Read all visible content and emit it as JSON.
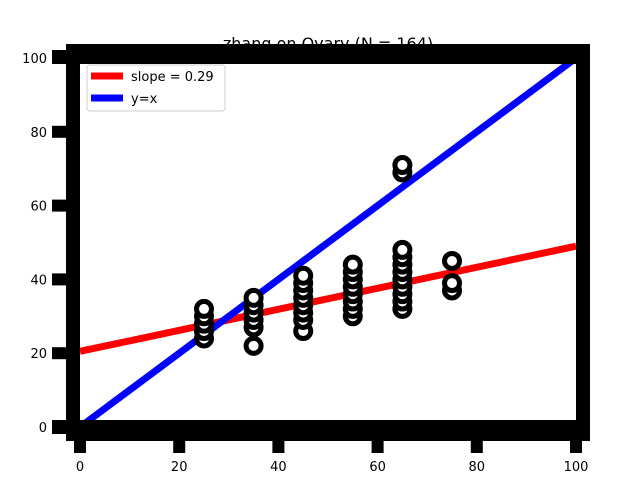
{
  "chart_data": {
    "type": "scatter",
    "title": "zhang on Ovary (N = 164)",
    "xlabel": "",
    "ylabel": "",
    "xlim": [
      0,
      100
    ],
    "ylim": [
      0,
      100
    ],
    "xticks": [
      0,
      20,
      40,
      60,
      80,
      100
    ],
    "yticks": [
      0,
      20,
      40,
      60,
      80,
      100
    ],
    "grid": false,
    "legend_position": "top-left",
    "series": [
      {
        "kind": "scatter",
        "color": "#000000",
        "points": [
          [
            25,
            24
          ],
          [
            25,
            26
          ],
          [
            25,
            28
          ],
          [
            25,
            30
          ],
          [
            25,
            32
          ],
          [
            35,
            22
          ],
          [
            35,
            27
          ],
          [
            35,
            29
          ],
          [
            35,
            31
          ],
          [
            35,
            33
          ],
          [
            35,
            35
          ],
          [
            45,
            26
          ],
          [
            45,
            29
          ],
          [
            45,
            31
          ],
          [
            45,
            33
          ],
          [
            45,
            35
          ],
          [
            45,
            37
          ],
          [
            45,
            39
          ],
          [
            45,
            41
          ],
          [
            55,
            30
          ],
          [
            55,
            32
          ],
          [
            55,
            34
          ],
          [
            55,
            36
          ],
          [
            55,
            38
          ],
          [
            55,
            40
          ],
          [
            55,
            42
          ],
          [
            55,
            44
          ],
          [
            65,
            32
          ],
          [
            65,
            34
          ],
          [
            65,
            36
          ],
          [
            65,
            38
          ],
          [
            65,
            40
          ],
          [
            65,
            42
          ],
          [
            65,
            44
          ],
          [
            65,
            46
          ],
          [
            65,
            48
          ],
          [
            65,
            69
          ],
          [
            65,
            71
          ],
          [
            75,
            37
          ],
          [
            75,
            39
          ],
          [
            75,
            45
          ]
        ]
      },
      {
        "kind": "line",
        "name": "slope = 0.29",
        "color": "#ff0000",
        "x": [
          0,
          100
        ],
        "y": [
          20.5,
          49
        ]
      },
      {
        "kind": "line",
        "name": "y=x",
        "color": "#0000ff",
        "x": [
          0,
          100
        ],
        "y": [
          0,
          100
        ]
      }
    ]
  }
}
